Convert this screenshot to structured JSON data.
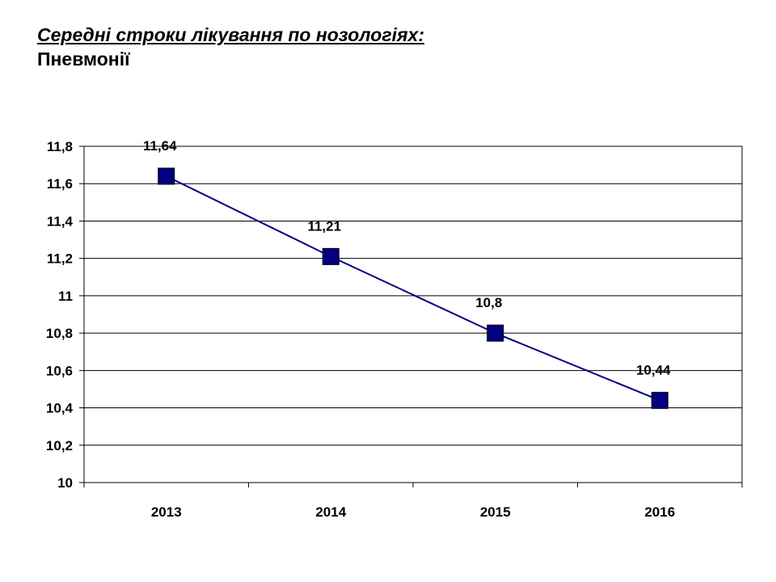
{
  "header": {
    "title": "Середні строки лікування по нозологіях:",
    "subtitle": "Пневмонії"
  },
  "chart_data": {
    "type": "line",
    "categories": [
      "2013",
      "2014",
      "2015",
      "2016"
    ],
    "series": [
      {
        "values": [
          11.64,
          11.21,
          10.8,
          10.44
        ],
        "labels": [
          "11,64",
          "11,21",
          "10,8",
          "10,44"
        ],
        "line_color": "#000080",
        "marker_color": "#000080",
        "marker": "square"
      }
    ],
    "ylim": [
      10,
      11.8
    ],
    "yticks": [
      10,
      10.2,
      10.4,
      10.6,
      10.8,
      11,
      11.2,
      11.4,
      11.6,
      11.8
    ],
    "ytick_labels": [
      "10",
      "10,2",
      "10,4",
      "10,6",
      "10,8",
      "11",
      "11,2",
      "11,4",
      "11,6",
      "11,8"
    ],
    "grid": true,
    "legend": "none"
  }
}
